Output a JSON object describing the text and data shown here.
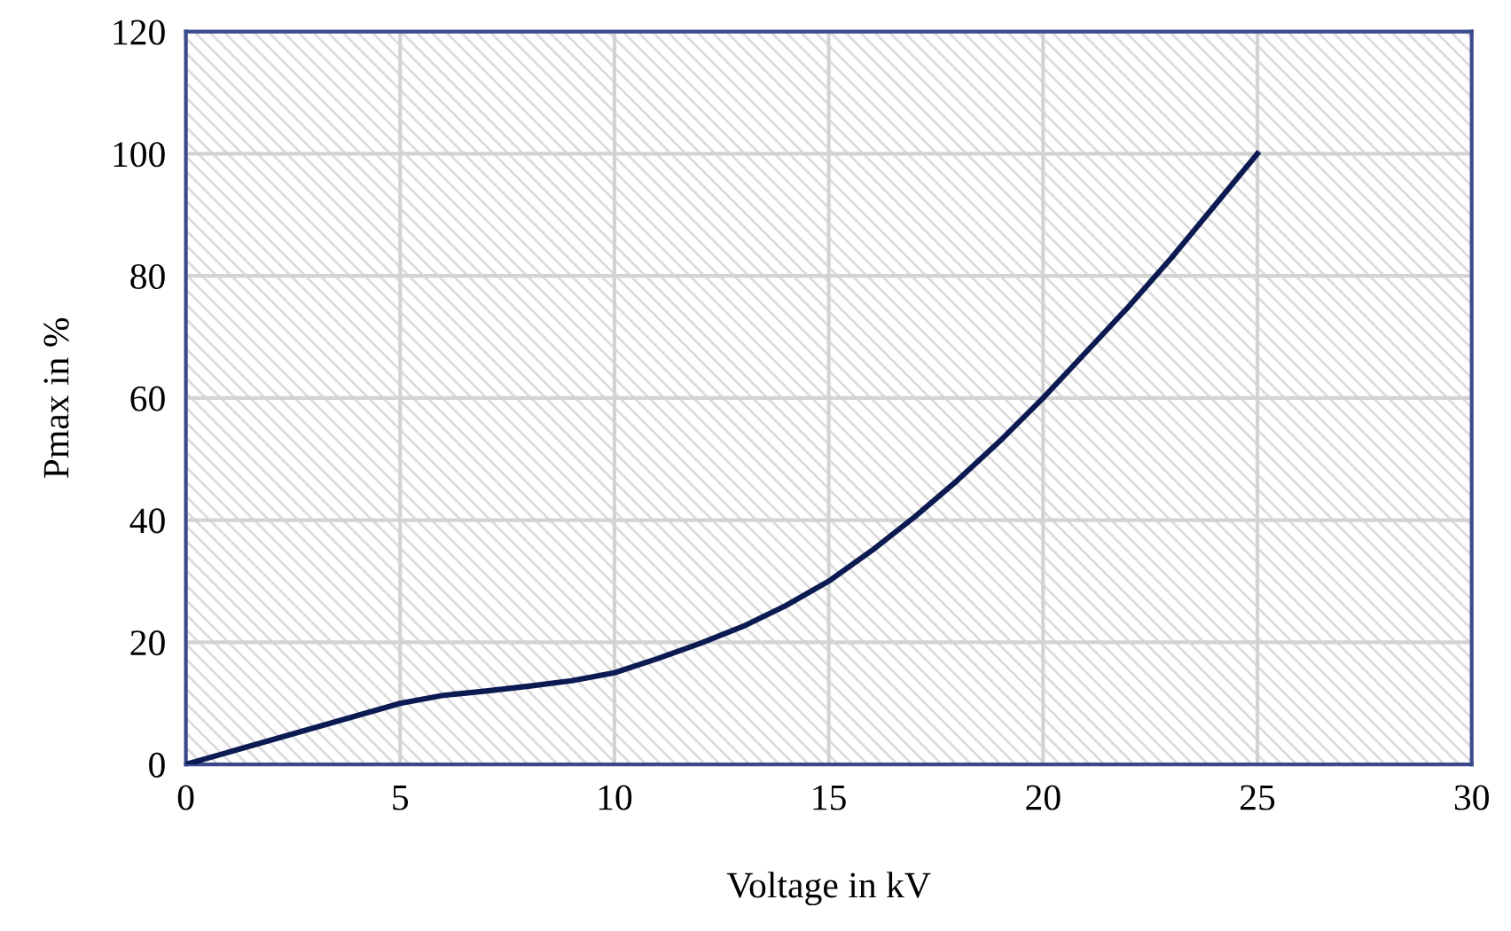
{
  "chart_data": {
    "type": "line",
    "xlabel": "Voltage in kV",
    "ylabel": "Pmax in %",
    "x": [
      0,
      1,
      2,
      3,
      4,
      5,
      6,
      7,
      8,
      9,
      10,
      11,
      12,
      13,
      14,
      15,
      16,
      17,
      18,
      19,
      20,
      21,
      22,
      23,
      24,
      25
    ],
    "series": [
      {
        "color": "#0c1a52",
        "values": [
          0,
          2,
          4,
          6,
          8,
          10,
          11.3,
          12,
          12.8,
          13.7,
          15,
          17.3,
          19.8,
          22.6,
          26,
          30,
          35,
          40.5,
          46.5,
          53,
          60,
          67.5,
          75,
          83,
          91.5,
          100
        ]
      }
    ],
    "xlim": [
      0,
      30
    ],
    "xticks": [
      0,
      5,
      10,
      15,
      20,
      25,
      30
    ],
    "ylim": [
      0,
      120
    ],
    "yticks": [
      0,
      20,
      40,
      60,
      80,
      100,
      120
    ],
    "grid": true,
    "marker": "none",
    "line_style": "solid"
  }
}
